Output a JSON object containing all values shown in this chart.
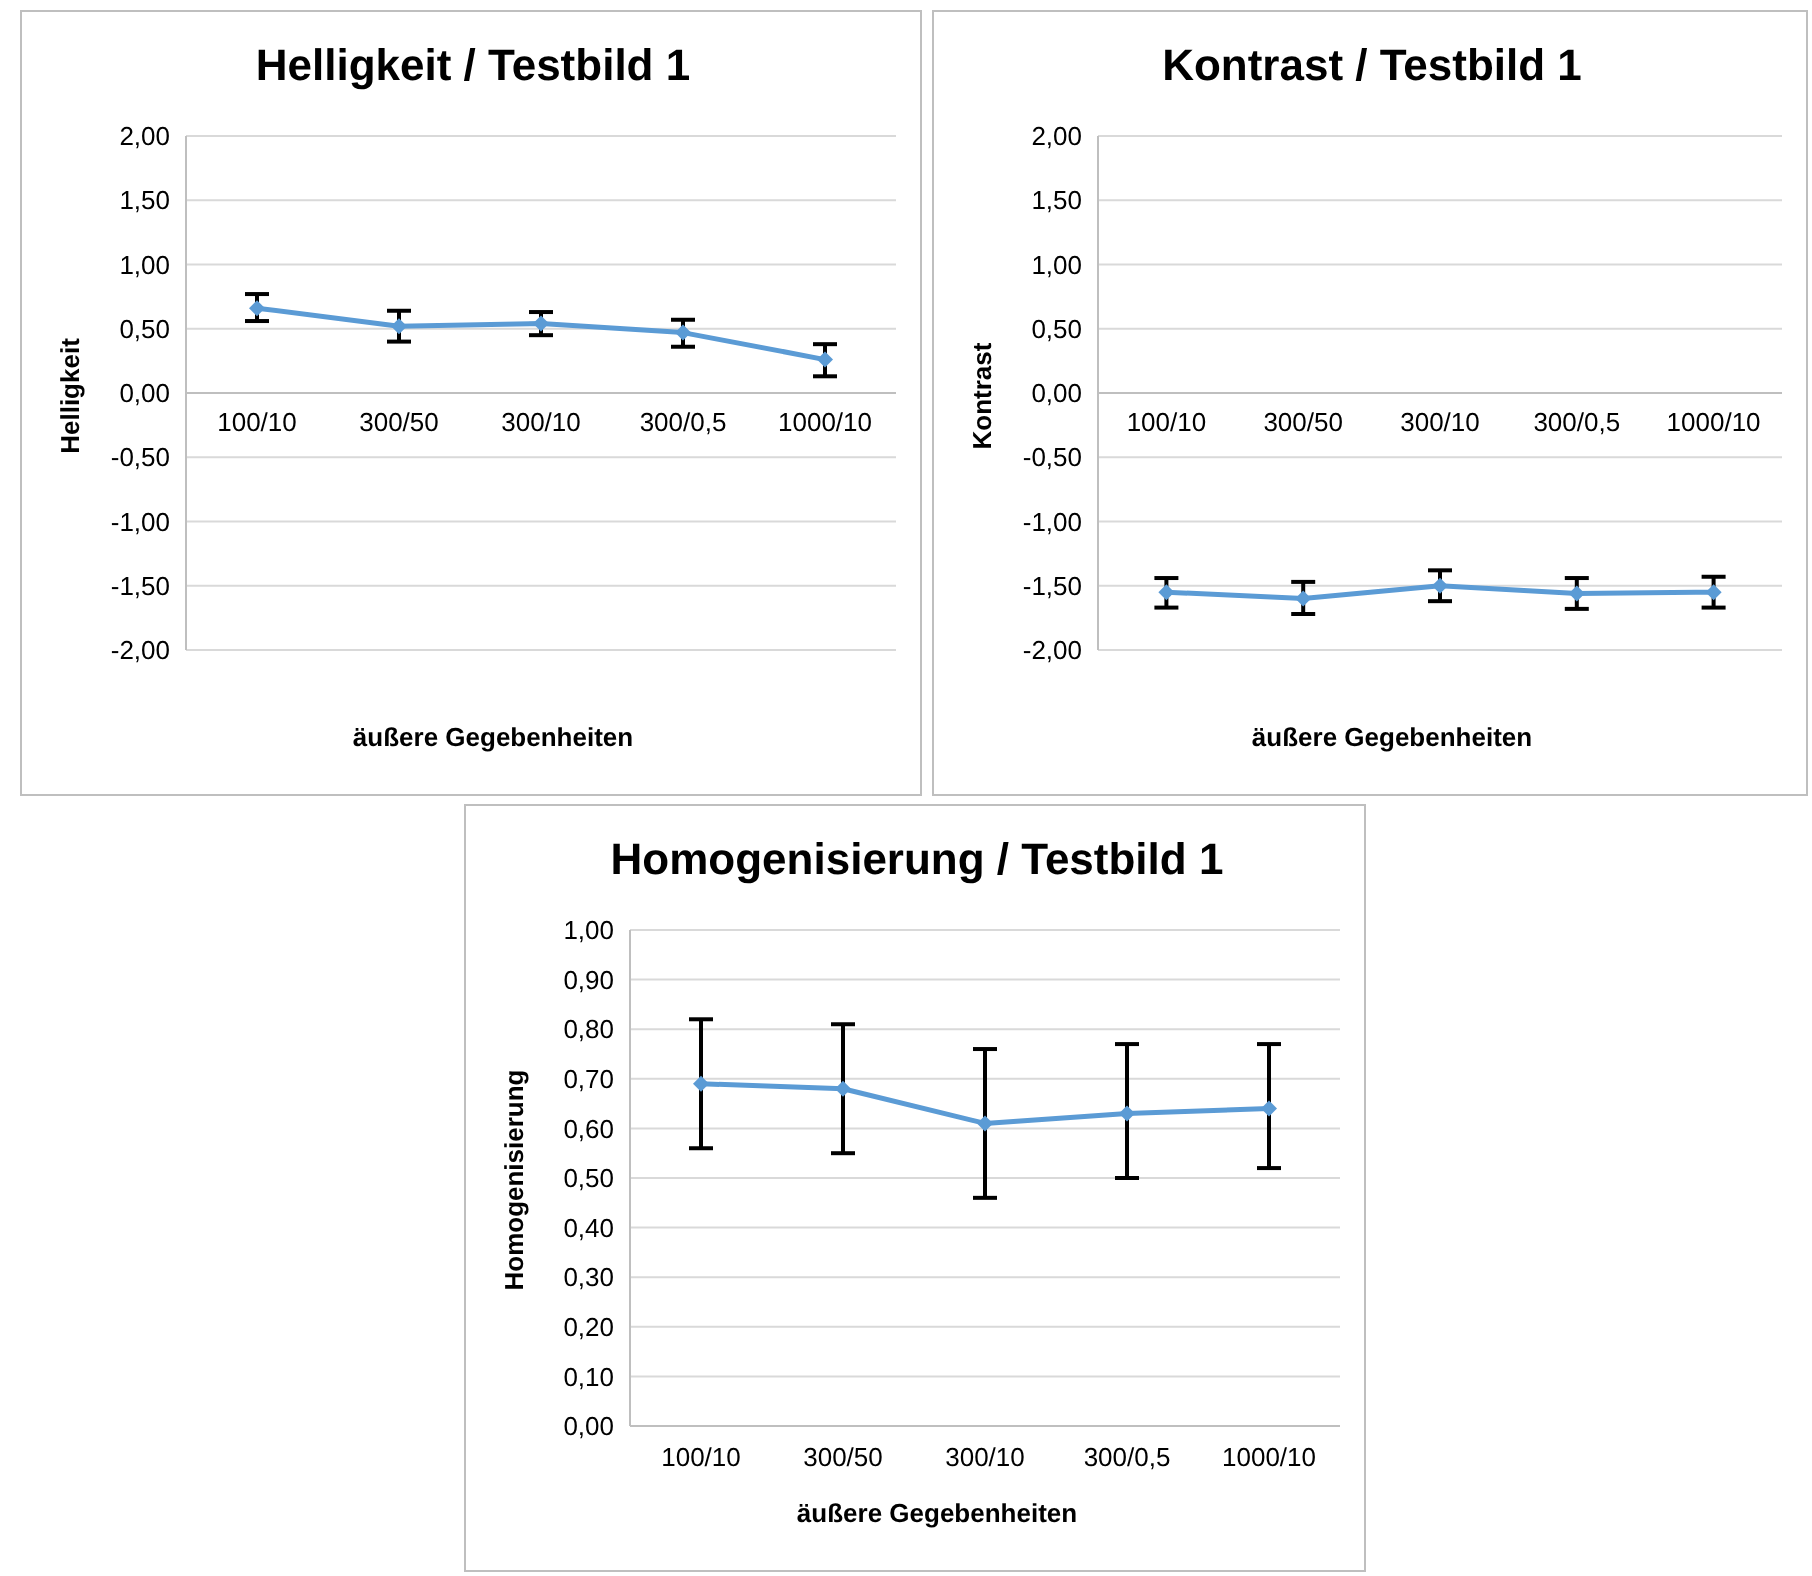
{
  "chart_data": [
    {
      "type": "line",
      "title": "Helligkeit / Testbild 1",
      "xlabel": "äußere Gegebenheiten",
      "ylabel": "Helligkeit",
      "categories": [
        "100/10",
        "300/50",
        "300/10",
        "300/0,5",
        "1000/10"
      ],
      "series": [
        {
          "color": "#5b9bd5",
          "values": [
            0.66,
            0.52,
            0.54,
            0.47,
            0.26
          ],
          "errors": [
            [
              0.56,
              0.77
            ],
            [
              0.4,
              0.64
            ],
            [
              0.45,
              0.63
            ],
            [
              0.36,
              0.57
            ],
            [
              0.13,
              0.38
            ]
          ]
        }
      ],
      "ylim": [
        -2,
        2
      ],
      "yticks": [
        {
          "value": -2,
          "label": "-2,00"
        },
        {
          "value": -1.5,
          "label": "-1,50"
        },
        {
          "value": -1,
          "label": "-1,00"
        },
        {
          "value": -0.5,
          "label": "-0,50"
        },
        {
          "value": 0,
          "label": "0,00"
        },
        {
          "value": 0.5,
          "label": "0,50"
        },
        {
          "value": 1,
          "label": "1,00"
        },
        {
          "value": 1.5,
          "label": "1,50"
        },
        {
          "value": 2,
          "label": "2,00"
        }
      ],
      "grid": "y",
      "marker": "diamond",
      "line_style": "solid"
    },
    {
      "type": "line",
      "title": "Kontrast / Testbild 1",
      "xlabel": "äußere Gegebenheiten",
      "ylabel": "Kontrast",
      "categories": [
        "100/10",
        "300/50",
        "300/10",
        "300/0,5",
        "1000/10"
      ],
      "series": [
        {
          "color": "#5b9bd5",
          "values": [
            -1.55,
            -1.6,
            -1.5,
            -1.56,
            -1.55
          ],
          "errors": [
            [
              -1.67,
              -1.44
            ],
            [
              -1.72,
              -1.47
            ],
            [
              -1.62,
              -1.38
            ],
            [
              -1.68,
              -1.44
            ],
            [
              -1.67,
              -1.43
            ]
          ]
        }
      ],
      "ylim": [
        -2,
        2
      ],
      "yticks": [
        {
          "value": -2,
          "label": "-2,00"
        },
        {
          "value": -1.5,
          "label": "-1,50"
        },
        {
          "value": -1,
          "label": "-1,00"
        },
        {
          "value": -0.5,
          "label": "-0,50"
        },
        {
          "value": 0,
          "label": "0,00"
        },
        {
          "value": 0.5,
          "label": "0,50"
        },
        {
          "value": 1,
          "label": "1,00"
        },
        {
          "value": 1.5,
          "label": "1,50"
        },
        {
          "value": 2,
          "label": "2,00"
        }
      ],
      "grid": "y",
      "marker": "diamond",
      "line_style": "solid"
    },
    {
      "type": "line",
      "title": "Homogenisierung / Testbild 1",
      "xlabel": "äußere Gegebenheiten",
      "ylabel": "Homogenisierung",
      "categories": [
        "100/10",
        "300/50",
        "300/10",
        "300/0,5",
        "1000/10"
      ],
      "series": [
        {
          "color": "#5b9bd5",
          "values": [
            0.69,
            0.68,
            0.61,
            0.63,
            0.64
          ],
          "errors": [
            [
              0.56,
              0.82
            ],
            [
              0.55,
              0.81
            ],
            [
              0.46,
              0.76
            ],
            [
              0.5,
              0.77
            ],
            [
              0.52,
              0.77
            ]
          ]
        }
      ],
      "ylim": [
        0,
        1
      ],
      "yticks": [
        {
          "value": 0,
          "label": "0,00"
        },
        {
          "value": 0.1,
          "label": "0,10"
        },
        {
          "value": 0.2,
          "label": "0,20"
        },
        {
          "value": 0.3,
          "label": "0,30"
        },
        {
          "value": 0.4,
          "label": "0,40"
        },
        {
          "value": 0.5,
          "label": "0,50"
        },
        {
          "value": 0.6,
          "label": "0,60"
        },
        {
          "value": 0.7,
          "label": "0,70"
        },
        {
          "value": 0.8,
          "label": "0,80"
        },
        {
          "value": 0.9,
          "label": "0,90"
        },
        {
          "value": 1,
          "label": "1,00"
        }
      ],
      "grid": "y",
      "marker": "diamond",
      "line_style": "solid"
    }
  ]
}
